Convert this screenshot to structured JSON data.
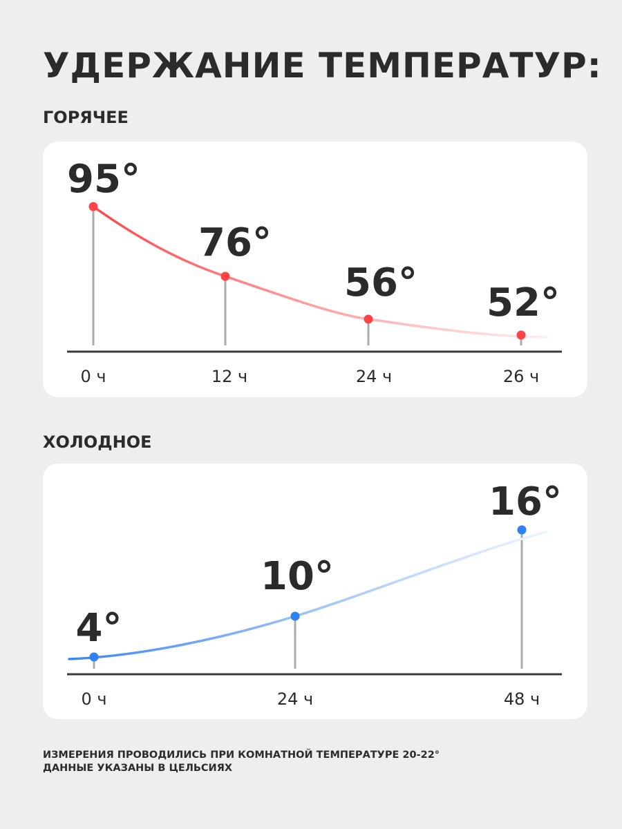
{
  "title": "УДЕРЖАНИЕ ТЕМПЕРАТУР:",
  "footer": {
    "line1": "ИЗМЕРЕНИЯ ПРОВОДИЛИСЬ ПРИ КОМНАТНОЙ ТЕМПЕРАТУРЕ 20-22°",
    "line2": "ДАННЫЕ УКАЗАНЫ В ЦЕЛЬСИЯХ"
  },
  "chart_data": [
    {
      "type": "line",
      "title": "ГОРЯЧЕЕ",
      "categories": [
        "0 ч",
        "12 ч",
        "24 ч",
        "26 ч"
      ],
      "x": [
        0,
        12,
        24,
        26
      ],
      "values": [
        95,
        76,
        56,
        52
      ],
      "data_labels": [
        "95°",
        "76°",
        "56°",
        "52°"
      ],
      "color": "#ff4448"
    },
    {
      "type": "line",
      "title": "ХОЛОДНОЕ",
      "categories": [
        "0 ч",
        "24 ч",
        "48 ч"
      ],
      "x": [
        0,
        24,
        48
      ],
      "values": [
        4,
        10,
        16
      ],
      "data_labels": [
        "4°",
        "10°",
        "16°"
      ],
      "color": "#2f7ff5"
    }
  ]
}
